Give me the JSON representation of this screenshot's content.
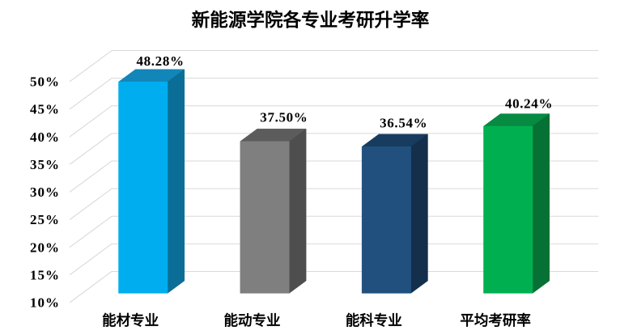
{
  "title": "新能源学院各专业考研升学率",
  "chart_data": {
    "type": "bar",
    "projection": "3d-column-oblique",
    "title": "新能源学院各专业考研升学率",
    "categories": [
      "能材专业",
      "能动专业",
      "能科专业",
      "平均考研率"
    ],
    "values": [
      48.28,
      37.5,
      36.54,
      40.24
    ],
    "data_labels": [
      "48.28%",
      "37.50%",
      "36.54%",
      "40.24%"
    ],
    "y_tick_labels": [
      "10%",
      "15%",
      "20%",
      "25%",
      "30%",
      "35%",
      "40%",
      "45%",
      "50%"
    ],
    "y_ticks": [
      10,
      15,
      20,
      25,
      30,
      35,
      40,
      45,
      50
    ],
    "ylim": [
      10,
      50
    ],
    "ystep": 5,
    "grid": true,
    "legend_position": "none",
    "series_colors": [
      {
        "front": "#00AEEF",
        "top": "#1286B8",
        "side": "#0A6E96"
      },
      {
        "front": "#7F7F7F",
        "top": "#5C5C5C",
        "side": "#4E4E4E"
      },
      {
        "front": "#21507E",
        "top": "#183C5F",
        "side": "#132F4B"
      },
      {
        "front": "#00B050",
        "top": "#078A41",
        "side": "#067134"
      }
    ],
    "grid_color": "#D9D9D9",
    "background_color": "#FFFFFF",
    "text_color": "#000000"
  }
}
